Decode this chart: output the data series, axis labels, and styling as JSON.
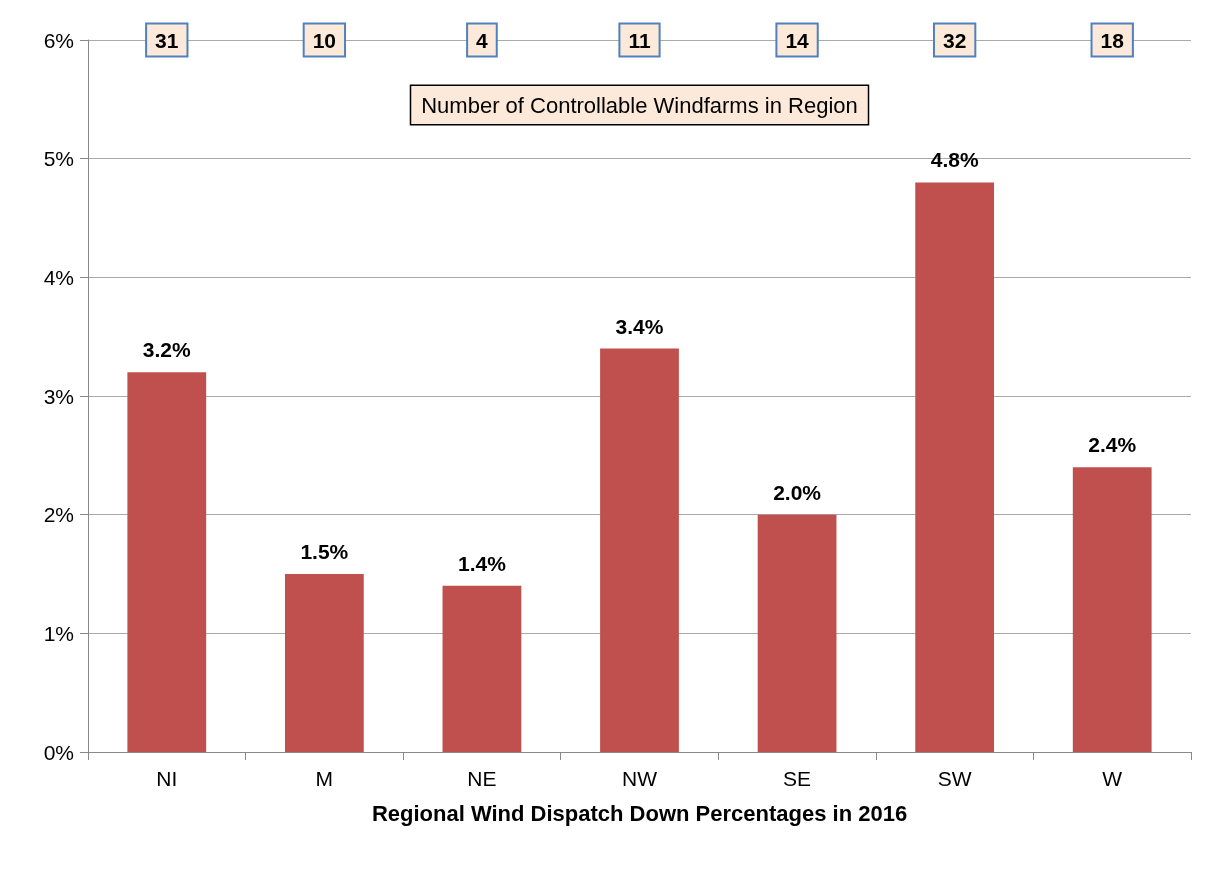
{
  "chart_data": {
    "type": "bar",
    "xlabel": "Regional Wind Dispatch Down Percentages in 2016",
    "categories": [
      "NI",
      "M",
      "NE",
      "NW",
      "SE",
      "SW",
      "W"
    ],
    "values": [
      3.2,
      1.5,
      1.4,
      3.4,
      2.0,
      4.8,
      2.4
    ],
    "value_labels": [
      "3.2%",
      "1.5%",
      "1.4%",
      "3.4%",
      "2.0%",
      "4.8%",
      "2.4%"
    ],
    "color": "#c0504d",
    "ylim": [
      0,
      6
    ],
    "yticks": [
      {
        "value": 0,
        "label": "0%"
      },
      {
        "value": 1,
        "label": "1%"
      },
      {
        "value": 2,
        "label": "2%"
      },
      {
        "value": 3,
        "label": "3%"
      },
      {
        "value": 4,
        "label": "4%"
      },
      {
        "value": 5,
        "label": "5%"
      },
      {
        "value": 6,
        "label": "6%"
      }
    ],
    "grid": "y",
    "annotations": [
      "Number of Controllable Windfarms in Region",
      {
        "text": "31",
        "x": "NI",
        "y": 6
      },
      {
        "text": "10",
        "x": "M",
        "y": 6
      },
      {
        "text": "4",
        "x": "NE",
        "y": 6
      },
      {
        "text": "11",
        "x": "NW",
        "y": 6
      },
      {
        "text": "14",
        "x": "SE",
        "y": 6
      },
      {
        "text": "32",
        "x": "SW",
        "y": 6
      },
      {
        "text": "18",
        "x": "W",
        "y": 6
      }
    ]
  }
}
